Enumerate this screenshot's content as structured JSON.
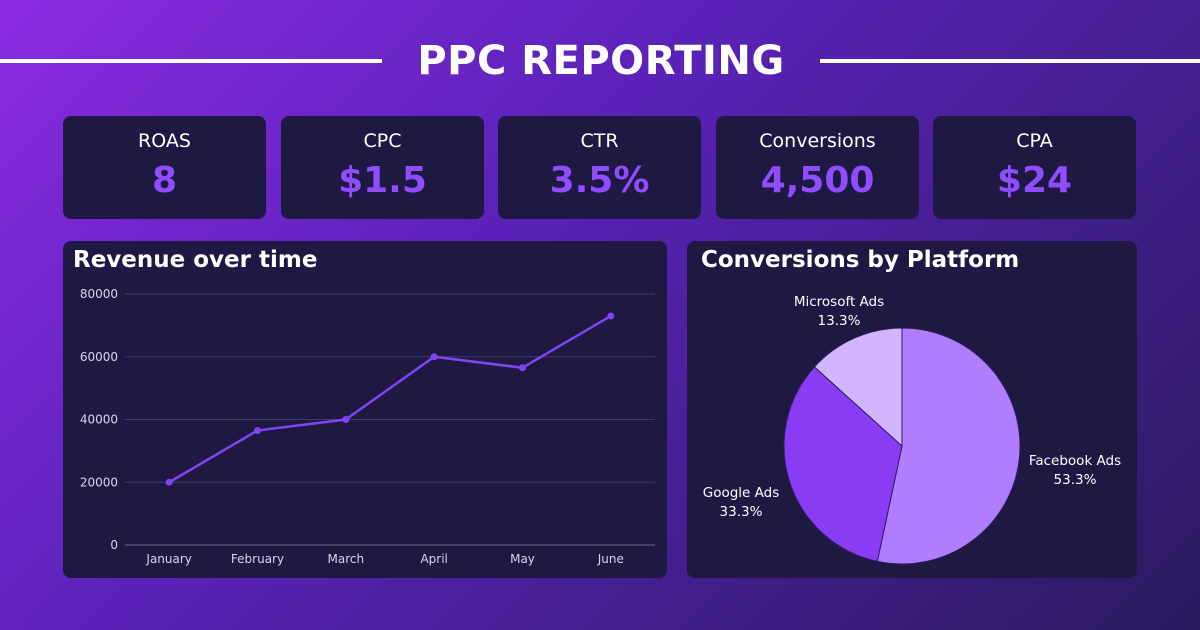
{
  "header": {
    "title": "PPC REPORTING"
  },
  "kpis": [
    {
      "label": "ROAS",
      "value": "8"
    },
    {
      "label": "CPC",
      "value": "$1.5"
    },
    {
      "label": "CTR",
      "value": "3.5%"
    },
    {
      "label": "Conversions",
      "value": "4,500"
    },
    {
      "label": "CPA",
      "value": "$24"
    }
  ],
  "colors": {
    "accent": "#8f4dff",
    "panel": "#1e1842",
    "line": "#7e45f0",
    "pie": [
      "#b07dff",
      "#8a3cf5",
      "#d3b5ff"
    ]
  },
  "chart_data": [
    {
      "type": "line",
      "title": "Revenue over time",
      "xlabel": "",
      "ylabel": "",
      "categories": [
        "January",
        "February",
        "March",
        "April",
        "May",
        "June"
      ],
      "series": [
        {
          "values": [
            20000,
            36500,
            40000,
            60000,
            56500,
            73000
          ]
        }
      ],
      "yticks": [
        "0",
        "20000",
        "40000",
        "60000",
        "80000"
      ],
      "ylim": [
        0,
        80000
      ],
      "grid": true
    },
    {
      "type": "pie",
      "title": "Conversions by Platform",
      "slices": [
        {
          "name": "Facebook Ads",
          "value": 53.3,
          "label": "53.3%"
        },
        {
          "name": "Google Ads",
          "value": 33.3,
          "label": "33.3%"
        },
        {
          "name": "Microsoft Ads",
          "value": 13.3,
          "label": "13.3%"
        }
      ]
    }
  ]
}
